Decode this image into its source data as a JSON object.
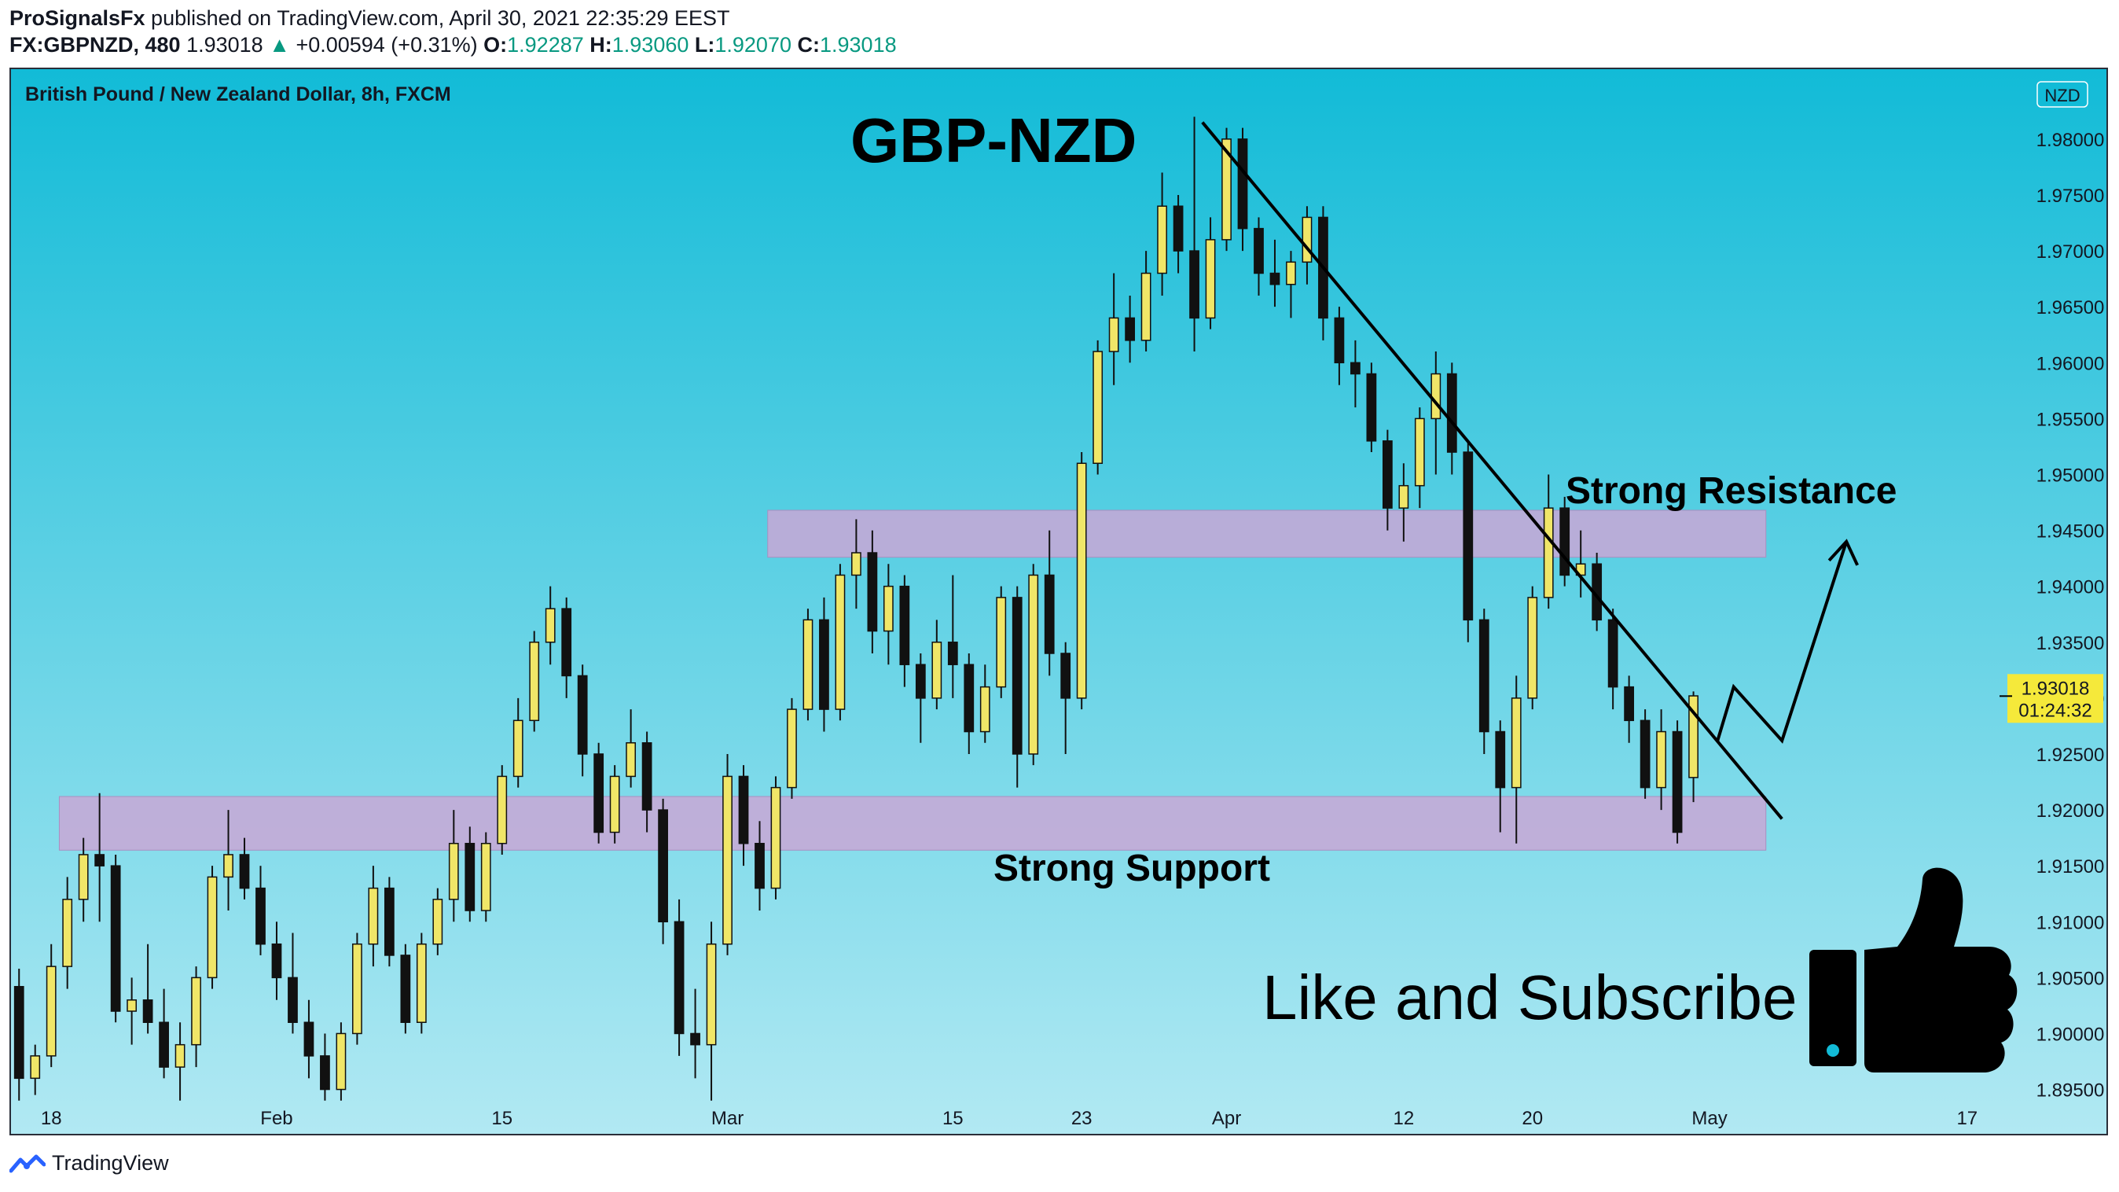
{
  "header": {
    "author": "ProSignalsFx",
    "published_text": " published on TradingView.com, April 30, 2021 22:35:29 EEST",
    "symbol": "FX:GBPNZD, 480",
    "last": "1.93018",
    "change_arrow": "▲",
    "change": "+0.00594 (+0.31%)",
    "o_label": "O:",
    "o_value": "1.92287",
    "h_label": "H:",
    "h_value": "1.93060",
    "l_label": "L:",
    "l_value": "1.92070",
    "c_label": "C:",
    "c_value": "1.93018"
  },
  "chart_title": "British Pound / New Zealand Dollar, 8h, FXCM",
  "currency_badge": "NZD",
  "footer": {
    "brand": "TradingView"
  },
  "colors": {
    "bg_top": "#12bbd7",
    "bg_bottom": "#b2e9f3",
    "candle_up": "#f0e668",
    "candle_down": "#111111",
    "zone_fill": "#c9a7d6",
    "price_badge": "#f5e93a"
  },
  "annotations": {
    "pair_label": "GBP-NZD",
    "resistance_label": "Strong Resistance",
    "support_label": "Strong Support",
    "cta": "Like and Subscribe",
    "cta_icon": "thumbs-up-icon"
  },
  "chart_data": {
    "type": "candlestick",
    "timeframe": "8h",
    "y_axis": {
      "min": 1.893,
      "max": 1.984,
      "ticks": [
        "1.98000",
        "1.97500",
        "1.97000",
        "1.96500",
        "1.96000",
        "1.95500",
        "1.95000",
        "1.94500",
        "1.94000",
        "1.93500",
        "1.93000",
        "1.92500",
        "1.92000",
        "1.91500",
        "1.91000",
        "1.90500",
        "1.90000",
        "1.89500"
      ]
    },
    "x_axis": {
      "start": "2021-01-16",
      "end": "2021-05-20",
      "labels": [
        {
          "date": "2021-01-18",
          "label": "18"
        },
        {
          "date": "2021-02-01",
          "label": "Feb"
        },
        {
          "date": "2021-02-15",
          "label": "15"
        },
        {
          "date": "2021-03-01",
          "label": "Mar"
        },
        {
          "date": "2021-03-15",
          "label": "15"
        },
        {
          "date": "2021-03-23",
          "label": "23"
        },
        {
          "date": "2021-04-01",
          "label": "Apr"
        },
        {
          "date": "2021-04-12",
          "label": "12"
        },
        {
          "date": "2021-04-20",
          "label": "20"
        },
        {
          "date": "2021-05-01",
          "label": "May"
        },
        {
          "date": "2021-05-17",
          "label": "17"
        }
      ]
    },
    "last_price": {
      "value": 1.93018,
      "label": "1.93018",
      "countdown": "01:24:32"
    },
    "zones": [
      {
        "name": "resistance",
        "start": "2021-03-04",
        "end": "2021-05-05",
        "low": 1.9426,
        "high": 1.9468
      },
      {
        "name": "support",
        "start": "2021-01-19",
        "end": "2021-05-05",
        "low": 1.9164,
        "high": 1.9212
      }
    ],
    "trendline": {
      "start": {
        "date": "2021-03-31",
        "price": 1.9815
      },
      "end": {
        "date": "2021-05-06",
        "price": 1.9192
      }
    },
    "projection": [
      {
        "date": "2021-05-02",
        "price": 1.9262
      },
      {
        "date": "2021-05-03",
        "price": 1.931
      },
      {
        "date": "2021-05-06",
        "price": 1.9262
      },
      {
        "date": "2021-05-10",
        "price": 1.944
      }
    ],
    "candles": [
      {
        "date": "2021-01-16",
        "o": 1.9042,
        "h": 1.9058,
        "l": 1.894,
        "c": 1.896
      },
      {
        "date": "2021-01-17",
        "o": 1.896,
        "h": 1.899,
        "l": 1.8945,
        "c": 1.898
      },
      {
        "date": "2021-01-18",
        "o": 1.898,
        "h": 1.908,
        "l": 1.897,
        "c": 1.906
      },
      {
        "date": "2021-01-19",
        "o": 1.906,
        "h": 1.914,
        "l": 1.904,
        "c": 1.912
      },
      {
        "date": "2021-01-20",
        "o": 1.912,
        "h": 1.9175,
        "l": 1.91,
        "c": 1.916
      },
      {
        "date": "2021-01-21",
        "o": 1.916,
        "h": 1.9215,
        "l": 1.91,
        "c": 1.915
      },
      {
        "date": "2021-01-22",
        "o": 1.915,
        "h": 1.916,
        "l": 1.901,
        "c": 1.902
      },
      {
        "date": "2021-01-23",
        "o": 1.902,
        "h": 1.905,
        "l": 1.899,
        "c": 1.903
      },
      {
        "date": "2021-01-24",
        "o": 1.903,
        "h": 1.908,
        "l": 1.9,
        "c": 1.901
      },
      {
        "date": "2021-01-25",
        "o": 1.901,
        "h": 1.904,
        "l": 1.896,
        "c": 1.897
      },
      {
        "date": "2021-01-26",
        "o": 1.897,
        "h": 1.901,
        "l": 1.894,
        "c": 1.899
      },
      {
        "date": "2021-01-27",
        "o": 1.899,
        "h": 1.906,
        "l": 1.897,
        "c": 1.905
      },
      {
        "date": "2021-01-28",
        "o": 1.905,
        "h": 1.915,
        "l": 1.904,
        "c": 1.914
      },
      {
        "date": "2021-01-29",
        "o": 1.914,
        "h": 1.92,
        "l": 1.911,
        "c": 1.916
      },
      {
        "date": "2021-01-30",
        "o": 1.916,
        "h": 1.9175,
        "l": 1.912,
        "c": 1.913
      },
      {
        "date": "2021-01-31",
        "o": 1.913,
        "h": 1.915,
        "l": 1.907,
        "c": 1.908
      },
      {
        "date": "2021-02-01",
        "o": 1.908,
        "h": 1.91,
        "l": 1.903,
        "c": 1.905
      },
      {
        "date": "2021-02-02",
        "o": 1.905,
        "h": 1.909,
        "l": 1.9,
        "c": 1.901
      },
      {
        "date": "2021-02-03",
        "o": 1.901,
        "h": 1.903,
        "l": 1.896,
        "c": 1.898
      },
      {
        "date": "2021-02-04",
        "o": 1.898,
        "h": 1.9,
        "l": 1.894,
        "c": 1.895
      },
      {
        "date": "2021-02-05",
        "o": 1.895,
        "h": 1.901,
        "l": 1.894,
        "c": 1.9
      },
      {
        "date": "2021-02-06",
        "o": 1.9,
        "h": 1.909,
        "l": 1.899,
        "c": 1.908
      },
      {
        "date": "2021-02-07",
        "o": 1.908,
        "h": 1.915,
        "l": 1.906,
        "c": 1.913
      },
      {
        "date": "2021-02-08",
        "o": 1.913,
        "h": 1.914,
        "l": 1.906,
        "c": 1.907
      },
      {
        "date": "2021-02-09",
        "o": 1.907,
        "h": 1.908,
        "l": 1.9,
        "c": 1.901
      },
      {
        "date": "2021-02-10",
        "o": 1.901,
        "h": 1.909,
        "l": 1.9,
        "c": 1.908
      },
      {
        "date": "2021-02-11",
        "o": 1.908,
        "h": 1.913,
        "l": 1.907,
        "c": 1.912
      },
      {
        "date": "2021-02-12",
        "o": 1.912,
        "h": 1.92,
        "l": 1.91,
        "c": 1.917
      },
      {
        "date": "2021-02-13",
        "o": 1.917,
        "h": 1.9185,
        "l": 1.91,
        "c": 1.911
      },
      {
        "date": "2021-02-14",
        "o": 1.911,
        "h": 1.918,
        "l": 1.91,
        "c": 1.917
      },
      {
        "date": "2021-02-15",
        "o": 1.917,
        "h": 1.924,
        "l": 1.916,
        "c": 1.923
      },
      {
        "date": "2021-02-16",
        "o": 1.923,
        "h": 1.93,
        "l": 1.922,
        "c": 1.928
      },
      {
        "date": "2021-02-17",
        "o": 1.928,
        "h": 1.936,
        "l": 1.927,
        "c": 1.935
      },
      {
        "date": "2021-02-18",
        "o": 1.935,
        "h": 1.94,
        "l": 1.933,
        "c": 1.938
      },
      {
        "date": "2021-02-19",
        "o": 1.938,
        "h": 1.939,
        "l": 1.93,
        "c": 1.932
      },
      {
        "date": "2021-02-20",
        "o": 1.932,
        "h": 1.933,
        "l": 1.923,
        "c": 1.925
      },
      {
        "date": "2021-02-21",
        "o": 1.925,
        "h": 1.926,
        "l": 1.917,
        "c": 1.918
      },
      {
        "date": "2021-02-22",
        "o": 1.918,
        "h": 1.924,
        "l": 1.917,
        "c": 1.923
      },
      {
        "date": "2021-02-23",
        "o": 1.923,
        "h": 1.929,
        "l": 1.922,
        "c": 1.926
      },
      {
        "date": "2021-02-24",
        "o": 1.926,
        "h": 1.927,
        "l": 1.918,
        "c": 1.92
      },
      {
        "date": "2021-02-25",
        "o": 1.92,
        "h": 1.921,
        "l": 1.908,
        "c": 1.91
      },
      {
        "date": "2021-02-26",
        "o": 1.91,
        "h": 1.912,
        "l": 1.898,
        "c": 1.9
      },
      {
        "date": "2021-02-27",
        "o": 1.9,
        "h": 1.904,
        "l": 1.896,
        "c": 1.899
      },
      {
        "date": "2021-02-28",
        "o": 1.899,
        "h": 1.91,
        "l": 1.894,
        "c": 1.908
      },
      {
        "date": "2021-03-01",
        "o": 1.908,
        "h": 1.925,
        "l": 1.907,
        "c": 1.923
      },
      {
        "date": "2021-03-02",
        "o": 1.923,
        "h": 1.924,
        "l": 1.915,
        "c": 1.917
      },
      {
        "date": "2021-03-03",
        "o": 1.917,
        "h": 1.919,
        "l": 1.911,
        "c": 1.913
      },
      {
        "date": "2021-03-04",
        "o": 1.913,
        "h": 1.923,
        "l": 1.912,
        "c": 1.922
      },
      {
        "date": "2021-03-05",
        "o": 1.922,
        "h": 1.93,
        "l": 1.921,
        "c": 1.929
      },
      {
        "date": "2021-03-06",
        "o": 1.929,
        "h": 1.938,
        "l": 1.928,
        "c": 1.937
      },
      {
        "date": "2021-03-07",
        "o": 1.937,
        "h": 1.939,
        "l": 1.927,
        "c": 1.929
      },
      {
        "date": "2021-03-08",
        "o": 1.929,
        "h": 1.942,
        "l": 1.928,
        "c": 1.941
      },
      {
        "date": "2021-03-09",
        "o": 1.941,
        "h": 1.946,
        "l": 1.938,
        "c": 1.943
      },
      {
        "date": "2021-03-10",
        "o": 1.943,
        "h": 1.945,
        "l": 1.934,
        "c": 1.936
      },
      {
        "date": "2021-03-11",
        "o": 1.936,
        "h": 1.942,
        "l": 1.933,
        "c": 1.94
      },
      {
        "date": "2021-03-12",
        "o": 1.94,
        "h": 1.941,
        "l": 1.931,
        "c": 1.933
      },
      {
        "date": "2021-03-13",
        "o": 1.933,
        "h": 1.934,
        "l": 1.926,
        "c": 1.93
      },
      {
        "date": "2021-03-14",
        "o": 1.93,
        "h": 1.937,
        "l": 1.929,
        "c": 1.935
      },
      {
        "date": "2021-03-15",
        "o": 1.935,
        "h": 1.941,
        "l": 1.93,
        "c": 1.933
      },
      {
        "date": "2021-03-16",
        "o": 1.933,
        "h": 1.934,
        "l": 1.925,
        "c": 1.927
      },
      {
        "date": "2021-03-17",
        "o": 1.927,
        "h": 1.933,
        "l": 1.926,
        "c": 1.931
      },
      {
        "date": "2021-03-18",
        "o": 1.931,
        "h": 1.94,
        "l": 1.93,
        "c": 1.939
      },
      {
        "date": "2021-03-19",
        "o": 1.939,
        "h": 1.94,
        "l": 1.922,
        "c": 1.925
      },
      {
        "date": "2021-03-20",
        "o": 1.925,
        "h": 1.942,
        "l": 1.924,
        "c": 1.941
      },
      {
        "date": "2021-03-21",
        "o": 1.941,
        "h": 1.945,
        "l": 1.932,
        "c": 1.934
      },
      {
        "date": "2021-03-22",
        "o": 1.934,
        "h": 1.935,
        "l": 1.925,
        "c": 1.93
      },
      {
        "date": "2021-03-23",
        "o": 1.93,
        "h": 1.952,
        "l": 1.929,
        "c": 1.951
      },
      {
        "date": "2021-03-24",
        "o": 1.951,
        "h": 1.962,
        "l": 1.95,
        "c": 1.961
      },
      {
        "date": "2021-03-25",
        "o": 1.961,
        "h": 1.968,
        "l": 1.958,
        "c": 1.964
      },
      {
        "date": "2021-03-26",
        "o": 1.964,
        "h": 1.966,
        "l": 1.96,
        "c": 1.962
      },
      {
        "date": "2021-03-27",
        "o": 1.962,
        "h": 1.97,
        "l": 1.961,
        "c": 1.968
      },
      {
        "date": "2021-03-28",
        "o": 1.968,
        "h": 1.977,
        "l": 1.966,
        "c": 1.974
      },
      {
        "date": "2021-03-29",
        "o": 1.974,
        "h": 1.975,
        "l": 1.968,
        "c": 1.97
      },
      {
        "date": "2021-03-30",
        "o": 1.97,
        "h": 1.982,
        "l": 1.961,
        "c": 1.964
      },
      {
        "date": "2021-03-31",
        "o": 1.964,
        "h": 1.973,
        "l": 1.963,
        "c": 1.971
      },
      {
        "date": "2021-04-01",
        "o": 1.971,
        "h": 1.981,
        "l": 1.97,
        "c": 1.98
      },
      {
        "date": "2021-04-02",
        "o": 1.98,
        "h": 1.981,
        "l": 1.97,
        "c": 1.972
      },
      {
        "date": "2021-04-03",
        "o": 1.972,
        "h": 1.973,
        "l": 1.966,
        "c": 1.968
      },
      {
        "date": "2021-04-04",
        "o": 1.968,
        "h": 1.971,
        "l": 1.965,
        "c": 1.967
      },
      {
        "date": "2021-04-05",
        "o": 1.967,
        "h": 1.97,
        "l": 1.964,
        "c": 1.969
      },
      {
        "date": "2021-04-06",
        "o": 1.969,
        "h": 1.974,
        "l": 1.967,
        "c": 1.973
      },
      {
        "date": "2021-04-07",
        "o": 1.973,
        "h": 1.974,
        "l": 1.962,
        "c": 1.964
      },
      {
        "date": "2021-04-08",
        "o": 1.964,
        "h": 1.965,
        "l": 1.958,
        "c": 1.96
      },
      {
        "date": "2021-04-09",
        "o": 1.96,
        "h": 1.962,
        "l": 1.956,
        "c": 1.959
      },
      {
        "date": "2021-04-10",
        "o": 1.959,
        "h": 1.96,
        "l": 1.952,
        "c": 1.953
      },
      {
        "date": "2021-04-11",
        "o": 1.953,
        "h": 1.954,
        "l": 1.945,
        "c": 1.947
      },
      {
        "date": "2021-04-12",
        "o": 1.947,
        "h": 1.951,
        "l": 1.944,
        "c": 1.949
      },
      {
        "date": "2021-04-13",
        "o": 1.949,
        "h": 1.956,
        "l": 1.947,
        "c": 1.955
      },
      {
        "date": "2021-04-14",
        "o": 1.955,
        "h": 1.961,
        "l": 1.95,
        "c": 1.959
      },
      {
        "date": "2021-04-15",
        "o": 1.959,
        "h": 1.96,
        "l": 1.95,
        "c": 1.952
      },
      {
        "date": "2021-04-16",
        "o": 1.952,
        "h": 1.953,
        "l": 1.935,
        "c": 1.937
      },
      {
        "date": "2021-04-17",
        "o": 1.937,
        "h": 1.938,
        "l": 1.925,
        "c": 1.927
      },
      {
        "date": "2021-04-18",
        "o": 1.927,
        "h": 1.928,
        "l": 1.918,
        "c": 1.922
      },
      {
        "date": "2021-04-19",
        "o": 1.922,
        "h": 1.932,
        "l": 1.917,
        "c": 1.93
      },
      {
        "date": "2021-04-20",
        "o": 1.93,
        "h": 1.94,
        "l": 1.929,
        "c": 1.939
      },
      {
        "date": "2021-04-21",
        "o": 1.939,
        "h": 1.95,
        "l": 1.938,
        "c": 1.947
      },
      {
        "date": "2021-04-22",
        "o": 1.947,
        "h": 1.948,
        "l": 1.94,
        "c": 1.941
      },
      {
        "date": "2021-04-23",
        "o": 1.941,
        "h": 1.945,
        "l": 1.939,
        "c": 1.942
      },
      {
        "date": "2021-04-24",
        "o": 1.942,
        "h": 1.943,
        "l": 1.936,
        "c": 1.937
      },
      {
        "date": "2021-04-25",
        "o": 1.937,
        "h": 1.938,
        "l": 1.929,
        "c": 1.931
      },
      {
        "date": "2021-04-26",
        "o": 1.931,
        "h": 1.932,
        "l": 1.926,
        "c": 1.928
      },
      {
        "date": "2021-04-27",
        "o": 1.928,
        "h": 1.929,
        "l": 1.921,
        "c": 1.922
      },
      {
        "date": "2021-04-28",
        "o": 1.922,
        "h": 1.929,
        "l": 1.92,
        "c": 1.927
      },
      {
        "date": "2021-04-29",
        "o": 1.927,
        "h": 1.928,
        "l": 1.917,
        "c": 1.918
      },
      {
        "date": "2021-04-30",
        "o": 1.9229,
        "h": 1.9306,
        "l": 1.9207,
        "c": 1.9302
      }
    ]
  }
}
